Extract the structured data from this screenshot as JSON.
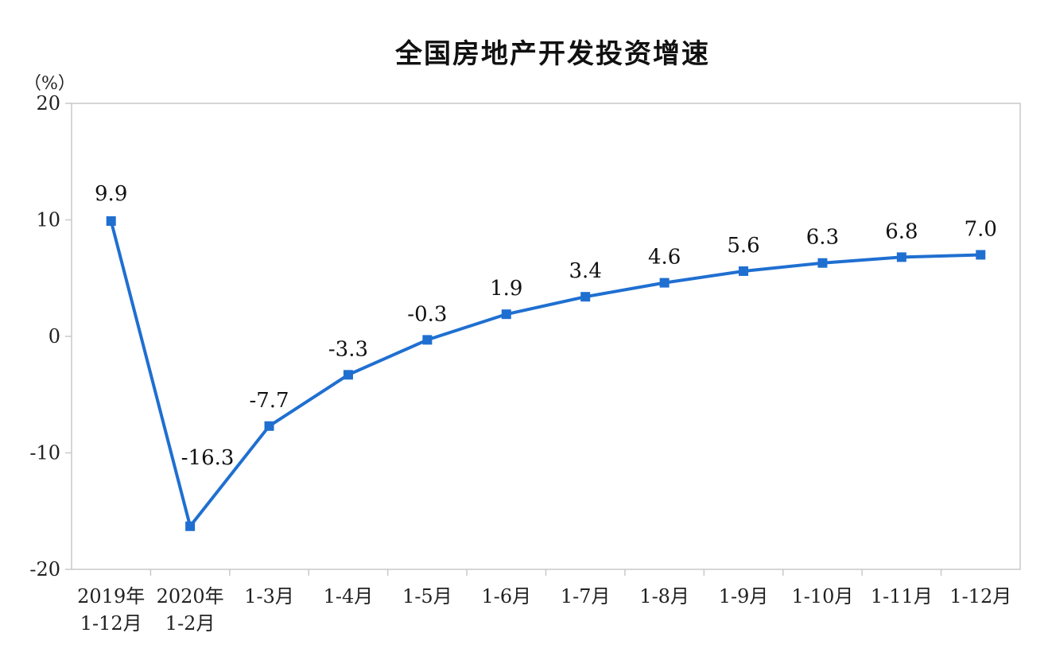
{
  "chart_data": {
    "type": "line",
    "title": "全国房地产开发投资增速",
    "ylabel": "（%）",
    "xlabel": "",
    "ylim": [
      -20,
      20
    ],
    "yticks": [
      20,
      10,
      0,
      -10,
      -20
    ],
    "grid": false,
    "legend": "none",
    "categories": [
      [
        "2019年",
        "1-12月"
      ],
      [
        "2020年",
        "1-2月"
      ],
      [
        "1-3月"
      ],
      [
        "1-4月"
      ],
      [
        "1-5月"
      ],
      [
        "1-6月"
      ],
      [
        "1-7月"
      ],
      [
        "1-8月"
      ],
      [
        "1-9月"
      ],
      [
        "1-10月"
      ],
      [
        "1-11月"
      ],
      [
        "1-12月"
      ]
    ],
    "series": [
      {
        "values": [
          9.9,
          -16.3,
          -7.7,
          -3.3,
          -0.3,
          1.9,
          3.4,
          4.6,
          5.6,
          6.3,
          6.8,
          7.0
        ],
        "labels": [
          "9.9",
          "-16.3",
          "-7.7",
          "-3.3",
          "-0.3",
          "1.9",
          "3.4",
          "4.6",
          "5.6",
          "6.3",
          "6.8",
          "7.0"
        ],
        "color": "#1f6fd1"
      }
    ]
  }
}
